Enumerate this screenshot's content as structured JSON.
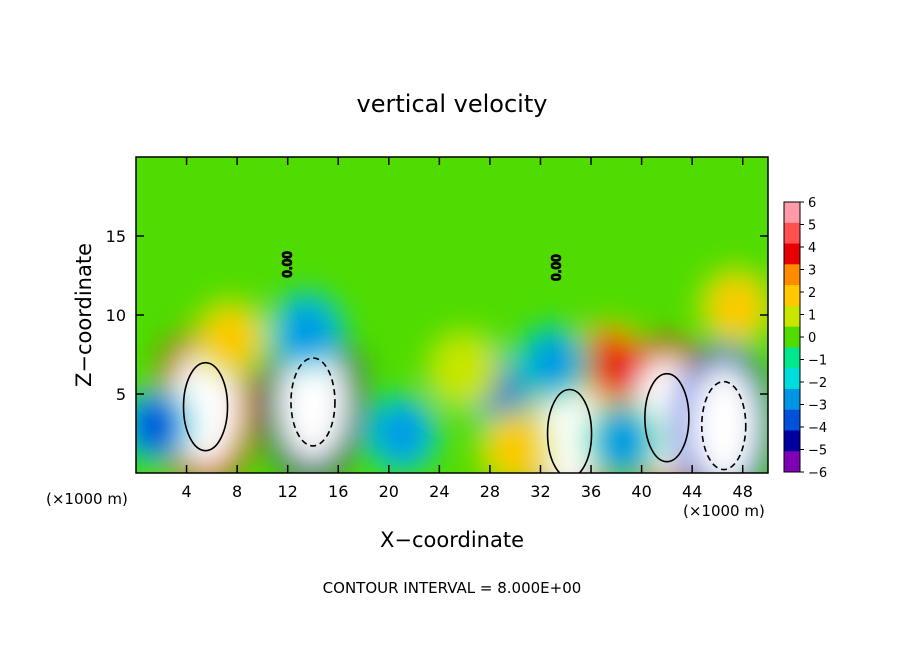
{
  "chart_data": {
    "type": "heatmap",
    "title": "vertical velocity",
    "xlabel": "X−coordinate",
    "ylabel": "Z−coordinate",
    "x_unit_label_left": "(×1000 m)",
    "x_unit_label_right": "(×1000 m)",
    "xlim": [
      0,
      50
    ],
    "ylim": [
      0,
      20
    ],
    "x_ticks": [
      4,
      8,
      12,
      16,
      20,
      24,
      28,
      32,
      36,
      40,
      44,
      48
    ],
    "y_ticks": [
      5,
      10,
      15
    ],
    "x_tick_labels": [
      "4",
      "8",
      "12",
      "16",
      "20",
      "24",
      "28",
      "32",
      "36",
      "40",
      "44",
      "48"
    ],
    "y_tick_labels": [
      "5",
      "10",
      "15"
    ],
    "colorbar": {
      "range": [
        -6,
        6
      ],
      "tick_labels": [
        "6",
        "5",
        "4",
        "3",
        "2",
        "1",
        "0",
        "−1",
        "−2",
        "−3",
        "−4",
        "−5",
        "−6"
      ],
      "colors": [
        "#ff9aa8",
        "#ff5050",
        "#e60000",
        "#ff8c00",
        "#ffc800",
        "#c8e600",
        "#50dc00",
        "#00e68c",
        "#00dcdc",
        "#0096e6",
        "#0050dc",
        "#0000a0",
        "#8000b4"
      ]
    },
    "contour_labels": [
      {
        "text": "0.00",
        "x": 12.3,
        "z": 13.2
      },
      {
        "text": "0.00",
        "x": 33.6,
        "z": 13.0
      }
    ],
    "annotation": "CONTOUR INTERVAL = 8.000E+00",
    "features": [
      {
        "x": 5.5,
        "z": 4.2,
        "w": 9.0
      },
      {
        "x": 7.5,
        "z": 8.5,
        "w": 2.0
      },
      {
        "x": 14.0,
        "z": 4.5,
        "w": -9.0
      },
      {
        "x": 13.5,
        "z": 9.0,
        "w": -3.0
      },
      {
        "x": 1.5,
        "z": 3.0,
        "w": -4.0
      },
      {
        "x": 34.3,
        "z": 2.5,
        "w": 7.5
      },
      {
        "x": 37.5,
        "z": 7.0,
        "w": 4.5
      },
      {
        "x": 42.0,
        "z": 3.5,
        "w": 8.0
      },
      {
        "x": 46.5,
        "z": 3.0,
        "w": -8.5
      },
      {
        "x": 47.5,
        "z": 10.5,
        "w": 2.5
      },
      {
        "x": 28.5,
        "z": 5.5,
        "w": -3.5
      },
      {
        "x": 33.0,
        "z": 7.0,
        "w": -2.5
      },
      {
        "x": 21.0,
        "z": 2.5,
        "w": -3.0
      },
      {
        "x": 30.0,
        "z": 1.5,
        "w": 2.5
      },
      {
        "x": 26.0,
        "z": 6.5,
        "w": 1.5
      },
      {
        "x": 38.5,
        "z": 2.0,
        "w": -2.5
      }
    ]
  }
}
